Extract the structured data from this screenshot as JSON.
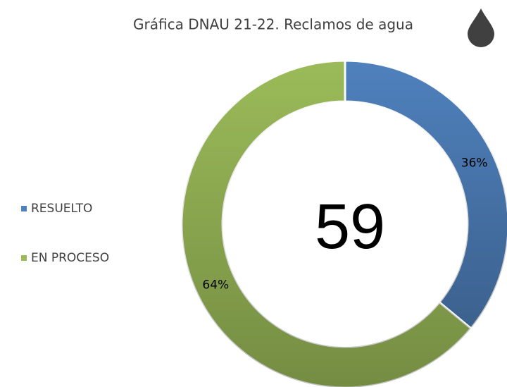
{
  "chart_data": {
    "type": "donut",
    "title": "Gráfica DNAU 21-22. Reclamos de agua",
    "center_label": "59",
    "categories": [
      "RESUELTO",
      "EN PROCESO"
    ],
    "values": [
      36,
      64
    ],
    "value_labels": [
      "36%",
      "64%"
    ],
    "colors": [
      "#4f81bd",
      "#9bbb59"
    ],
    "legend": "left"
  }
}
